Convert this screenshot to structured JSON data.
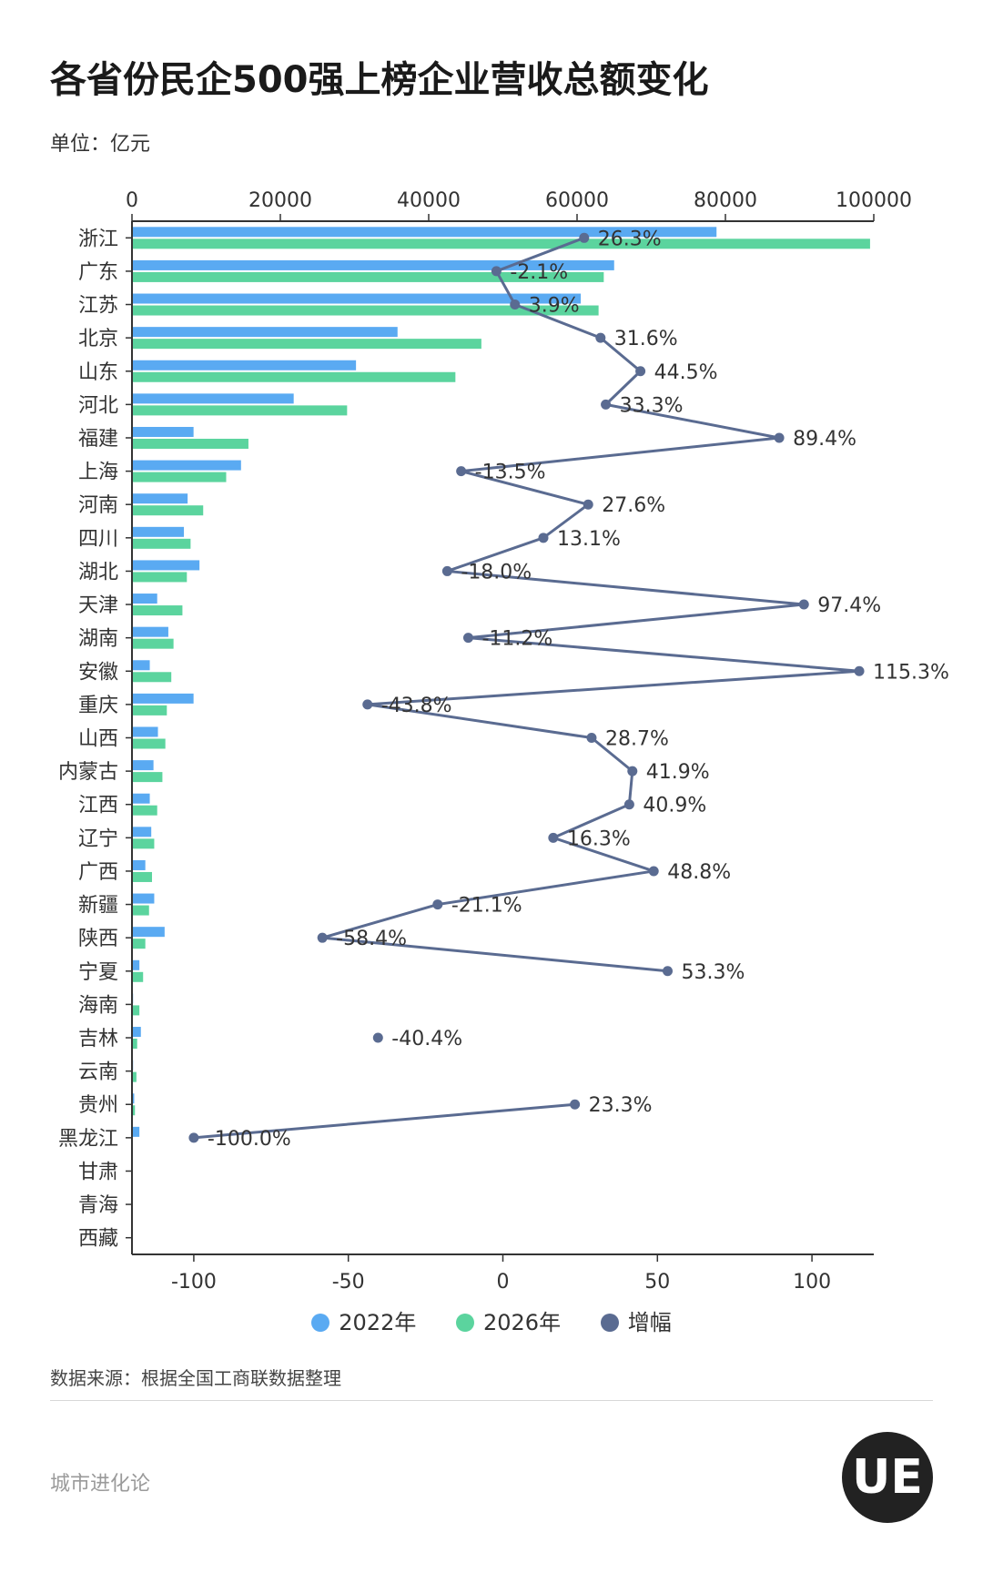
{
  "title": "各省份民企500强上榜企业营收总额变化",
  "unit": "单位：亿元",
  "legend": [
    {
      "label": "2022年",
      "color": "#5aaaf2"
    },
    {
      "label": "2026年",
      "color": "#5bd49e"
    },
    {
      "label": "增幅",
      "color": "#5a6b91"
    }
  ],
  "source": "数据来源：根据全国工商联数据整理",
  "brand": "城市进化论",
  "logo_text": "UE",
  "chart_data": {
    "type": "bar",
    "orientation": "horizontal",
    "categories": [
      "浙江",
      "广东",
      "江苏",
      "北京",
      "山东",
      "河北",
      "福建",
      "上海",
      "河南",
      "四川",
      "湖北",
      "天津",
      "湖南",
      "安徽",
      "重庆",
      "山西",
      "内蒙古",
      "江西",
      "辽宁",
      "广西",
      "新疆",
      "陕西",
      "宁夏",
      "海南",
      "吉林",
      "云南",
      "贵州",
      "黑龙江",
      "甘肃",
      "青海",
      "西藏"
    ],
    "top_axis": {
      "range": [
        0,
        100000
      ],
      "ticks": [
        0,
        20000,
        40000,
        60000,
        80000,
        100000
      ]
    },
    "bottom_axis": {
      "range": [
        -120,
        120
      ],
      "ticks": [
        -100,
        -50,
        0,
        50,
        100
      ]
    },
    "series": [
      {
        "name": "2022年",
        "axis": "top",
        "color": "#5aaaf2",
        "values": [
          78800,
          65000,
          60500,
          35800,
          30200,
          21800,
          8300,
          14700,
          7500,
          7000,
          9100,
          3400,
          4900,
          2400,
          8300,
          3500,
          2900,
          2400,
          2600,
          1800,
          3000,
          4400,
          1000,
          150,
          1200,
          150,
          300,
          1000,
          0,
          0,
          0
        ]
      },
      {
        "name": "2026年",
        "axis": "top",
        "color": "#5bd49e",
        "values": [
          99500,
          63600,
          62900,
          47100,
          43600,
          29000,
          15700,
          12700,
          9600,
          7900,
          7400,
          6800,
          5600,
          5300,
          4700,
          4500,
          4100,
          3400,
          3000,
          2700,
          2300,
          1800,
          1500,
          1000,
          700,
          600,
          400,
          0,
          0,
          0,
          0
        ]
      },
      {
        "name": "增幅",
        "axis": "bottom",
        "type": "line",
        "color": "#5a6b91",
        "values": [
          26.3,
          -2.1,
          3.9,
          31.6,
          44.5,
          33.3,
          89.4,
          -13.5,
          27.6,
          13.1,
          -18.0,
          97.4,
          -11.2,
          115.3,
          -43.8,
          28.7,
          41.9,
          40.9,
          16.3,
          48.8,
          -21.1,
          -58.4,
          53.3,
          null,
          -40.4,
          null,
          23.3,
          -100.0,
          null,
          null,
          null
        ],
        "labels": [
          "26.3%",
          "-2.1%",
          "3.9%",
          "31.6%",
          "44.5%",
          "33.3%",
          "89.4%",
          "-13.5%",
          "27.6%",
          "13.1%",
          "-18.0%",
          "97.4%",
          "-11.2%",
          "115.3%",
          "-43.8%",
          "28.7%",
          "41.9%",
          "40.9%",
          "16.3%",
          "48.8%",
          "-21.1%",
          "-58.4%",
          "53.3%",
          null,
          "-40.4%",
          null,
          "23.3%",
          "-100.0%",
          null,
          null,
          null
        ]
      }
    ],
    "grid": false,
    "legend_position": "bottom"
  }
}
